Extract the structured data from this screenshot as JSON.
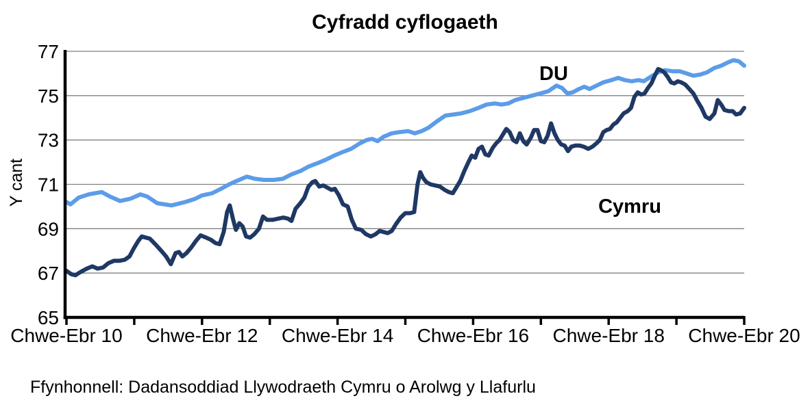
{
  "source": {
    "text": "Ffynhonnell: Dadansoddiad Llywodraeth Cymru o Arolwg y Llafurlu"
  },
  "chart_data": {
    "type": "line",
    "title": "Cyfradd cyflogaeth",
    "ylabel": "Y cant",
    "xlabel": "",
    "ylim": [
      65,
      77
    ],
    "xlim_years_after_2010": [
      0,
      10
    ],
    "grid": "horizontal",
    "grid_color": "#808080",
    "axis_color": "#000000",
    "legend_position": "inline-labels",
    "y_ticks": [
      65,
      67,
      69,
      71,
      73,
      75,
      77
    ],
    "x_minor_tick_years": [
      0,
      1,
      2,
      3,
      4,
      5,
      6,
      7,
      8,
      9,
      10
    ],
    "x_tick_labels": [
      {
        "t": 0,
        "label": "Chwe-Ebr 10"
      },
      {
        "t": 2,
        "label": "Chwe-Ebr 12"
      },
      {
        "t": 4,
        "label": "Chwe-Ebr 14"
      },
      {
        "t": 6,
        "label": "Chwe-Ebr 16"
      },
      {
        "t": 8,
        "label": "Chwe-Ebr 18"
      },
      {
        "t": 10,
        "label": "Chwe-Ebr 20"
      }
    ],
    "series": [
      {
        "name": "DU",
        "color": "#5C9CE8",
        "points": [
          [
            0.0,
            70.2
          ],
          [
            0.06,
            70.1
          ],
          [
            0.18,
            70.4
          ],
          [
            0.33,
            70.55
          ],
          [
            0.52,
            70.65
          ],
          [
            0.64,
            70.45
          ],
          [
            0.79,
            70.25
          ],
          [
            0.94,
            70.35
          ],
          [
            1.09,
            70.55
          ],
          [
            1.19,
            70.45
          ],
          [
            1.34,
            70.15
          ],
          [
            1.55,
            70.05
          ],
          [
            1.75,
            70.2
          ],
          [
            1.9,
            70.35
          ],
          [
            2.0,
            70.5
          ],
          [
            2.15,
            70.6
          ],
          [
            2.28,
            70.8
          ],
          [
            2.4,
            71.0
          ],
          [
            2.51,
            71.15
          ],
          [
            2.66,
            71.35
          ],
          [
            2.78,
            71.25
          ],
          [
            2.91,
            71.2
          ],
          [
            3.06,
            71.2
          ],
          [
            3.19,
            71.25
          ],
          [
            3.32,
            71.45
          ],
          [
            3.45,
            71.6
          ],
          [
            3.57,
            71.8
          ],
          [
            3.7,
            71.95
          ],
          [
            3.82,
            72.1
          ],
          [
            3.95,
            72.3
          ],
          [
            4.07,
            72.45
          ],
          [
            4.2,
            72.6
          ],
          [
            4.33,
            72.85
          ],
          [
            4.43,
            73.0
          ],
          [
            4.51,
            73.05
          ],
          [
            4.59,
            72.95
          ],
          [
            4.68,
            73.15
          ],
          [
            4.8,
            73.3
          ],
          [
            4.9,
            73.35
          ],
          [
            5.04,
            73.4
          ],
          [
            5.14,
            73.3
          ],
          [
            5.24,
            73.4
          ],
          [
            5.34,
            73.55
          ],
          [
            5.47,
            73.85
          ],
          [
            5.59,
            74.1
          ],
          [
            5.71,
            74.15
          ],
          [
            5.82,
            74.2
          ],
          [
            5.95,
            74.3
          ],
          [
            6.08,
            74.45
          ],
          [
            6.2,
            74.6
          ],
          [
            6.32,
            74.65
          ],
          [
            6.42,
            74.6
          ],
          [
            6.52,
            74.65
          ],
          [
            6.62,
            74.8
          ],
          [
            6.74,
            74.9
          ],
          [
            6.87,
            75.0
          ],
          [
            6.99,
            75.1
          ],
          [
            7.11,
            75.2
          ],
          [
            7.23,
            75.45
          ],
          [
            7.31,
            75.35
          ],
          [
            7.39,
            75.1
          ],
          [
            7.47,
            75.15
          ],
          [
            7.56,
            75.3
          ],
          [
            7.64,
            75.4
          ],
          [
            7.72,
            75.3
          ],
          [
            7.82,
            75.45
          ],
          [
            7.92,
            75.6
          ],
          [
            8.04,
            75.7
          ],
          [
            8.14,
            75.8
          ],
          [
            8.24,
            75.7
          ],
          [
            8.34,
            75.65
          ],
          [
            8.44,
            75.7
          ],
          [
            8.52,
            75.65
          ],
          [
            8.62,
            75.85
          ],
          [
            8.73,
            76.05
          ],
          [
            8.83,
            76.15
          ],
          [
            8.95,
            76.1
          ],
          [
            9.05,
            76.1
          ],
          [
            9.15,
            76.0
          ],
          [
            9.25,
            75.9
          ],
          [
            9.35,
            75.95
          ],
          [
            9.45,
            76.05
          ],
          [
            9.56,
            76.25
          ],
          [
            9.66,
            76.35
          ],
          [
            9.76,
            76.5
          ],
          [
            9.84,
            76.6
          ],
          [
            9.92,
            76.55
          ],
          [
            10.0,
            76.35
          ]
        ]
      },
      {
        "name": "Cymru",
        "color": "#1F3864",
        "points": [
          [
            0.0,
            67.1
          ],
          [
            0.07,
            66.95
          ],
          [
            0.13,
            66.9
          ],
          [
            0.21,
            67.05
          ],
          [
            0.3,
            67.2
          ],
          [
            0.38,
            67.3
          ],
          [
            0.46,
            67.2
          ],
          [
            0.54,
            67.25
          ],
          [
            0.62,
            67.45
          ],
          [
            0.7,
            67.55
          ],
          [
            0.78,
            67.55
          ],
          [
            0.86,
            67.6
          ],
          [
            0.93,
            67.75
          ],
          [
            1.0,
            68.15
          ],
          [
            1.06,
            68.45
          ],
          [
            1.11,
            68.65
          ],
          [
            1.17,
            68.6
          ],
          [
            1.23,
            68.55
          ],
          [
            1.31,
            68.3
          ],
          [
            1.4,
            68.0
          ],
          [
            1.47,
            67.75
          ],
          [
            1.54,
            67.4
          ],
          [
            1.61,
            67.9
          ],
          [
            1.66,
            67.95
          ],
          [
            1.71,
            67.75
          ],
          [
            1.77,
            67.9
          ],
          [
            1.84,
            68.15
          ],
          [
            1.91,
            68.45
          ],
          [
            1.98,
            68.7
          ],
          [
            2.06,
            68.6
          ],
          [
            2.13,
            68.5
          ],
          [
            2.2,
            68.35
          ],
          [
            2.26,
            68.3
          ],
          [
            2.32,
            68.85
          ],
          [
            2.37,
            69.75
          ],
          [
            2.41,
            70.05
          ],
          [
            2.46,
            69.4
          ],
          [
            2.5,
            68.95
          ],
          [
            2.55,
            69.25
          ],
          [
            2.6,
            69.1
          ],
          [
            2.65,
            68.65
          ],
          [
            2.71,
            68.6
          ],
          [
            2.77,
            68.75
          ],
          [
            2.84,
            69.0
          ],
          [
            2.9,
            69.55
          ],
          [
            2.96,
            69.4
          ],
          [
            3.04,
            69.4
          ],
          [
            3.12,
            69.45
          ],
          [
            3.2,
            69.5
          ],
          [
            3.27,
            69.45
          ],
          [
            3.32,
            69.35
          ],
          [
            3.38,
            69.9
          ],
          [
            3.45,
            70.15
          ],
          [
            3.51,
            70.4
          ],
          [
            3.57,
            70.9
          ],
          [
            3.63,
            71.1
          ],
          [
            3.67,
            71.15
          ],
          [
            3.73,
            70.9
          ],
          [
            3.79,
            70.95
          ],
          [
            3.85,
            70.85
          ],
          [
            3.91,
            70.75
          ],
          [
            3.96,
            70.8
          ],
          [
            4.02,
            70.5
          ],
          [
            4.08,
            70.1
          ],
          [
            4.15,
            70.0
          ],
          [
            4.21,
            69.4
          ],
          [
            4.27,
            69.0
          ],
          [
            4.35,
            68.95
          ],
          [
            4.42,
            68.75
          ],
          [
            4.49,
            68.65
          ],
          [
            4.56,
            68.75
          ],
          [
            4.62,
            68.9
          ],
          [
            4.68,
            68.85
          ],
          [
            4.74,
            68.8
          ],
          [
            4.8,
            68.9
          ],
          [
            4.86,
            69.2
          ],
          [
            4.93,
            69.5
          ],
          [
            5.0,
            69.7
          ],
          [
            5.07,
            69.7
          ],
          [
            5.13,
            69.75
          ],
          [
            5.18,
            71.0
          ],
          [
            5.22,
            71.55
          ],
          [
            5.26,
            71.3
          ],
          [
            5.31,
            71.1
          ],
          [
            5.37,
            71.0
          ],
          [
            5.44,
            70.95
          ],
          [
            5.51,
            70.9
          ],
          [
            5.58,
            70.75
          ],
          [
            5.64,
            70.65
          ],
          [
            5.7,
            70.6
          ],
          [
            5.76,
            70.9
          ],
          [
            5.81,
            71.15
          ],
          [
            5.87,
            71.6
          ],
          [
            5.93,
            72.0
          ],
          [
            5.98,
            72.3
          ],
          [
            6.03,
            72.2
          ],
          [
            6.08,
            72.6
          ],
          [
            6.13,
            72.7
          ],
          [
            6.18,
            72.35
          ],
          [
            6.23,
            72.3
          ],
          [
            6.29,
            72.65
          ],
          [
            6.34,
            72.85
          ],
          [
            6.39,
            73.0
          ],
          [
            6.44,
            73.25
          ],
          [
            6.49,
            73.5
          ],
          [
            6.54,
            73.35
          ],
          [
            6.59,
            73.0
          ],
          [
            6.64,
            72.9
          ],
          [
            6.69,
            73.3
          ],
          [
            6.74,
            72.95
          ],
          [
            6.79,
            72.8
          ],
          [
            6.85,
            73.1
          ],
          [
            6.9,
            73.45
          ],
          [
            6.95,
            73.45
          ],
          [
            7.0,
            72.95
          ],
          [
            7.05,
            72.9
          ],
          [
            7.1,
            73.2
          ],
          [
            7.15,
            73.75
          ],
          [
            7.2,
            73.3
          ],
          [
            7.25,
            73.0
          ],
          [
            7.3,
            72.8
          ],
          [
            7.35,
            72.75
          ],
          [
            7.4,
            72.5
          ],
          [
            7.45,
            72.7
          ],
          [
            7.51,
            72.75
          ],
          [
            7.57,
            72.75
          ],
          [
            7.63,
            72.7
          ],
          [
            7.7,
            72.6
          ],
          [
            7.76,
            72.7
          ],
          [
            7.82,
            72.85
          ],
          [
            7.87,
            73.0
          ],
          [
            7.92,
            73.35
          ],
          [
            7.97,
            73.45
          ],
          [
            8.02,
            73.5
          ],
          [
            8.07,
            73.7
          ],
          [
            8.12,
            73.8
          ],
          [
            8.17,
            74.0
          ],
          [
            8.22,
            74.2
          ],
          [
            8.28,
            74.3
          ],
          [
            8.33,
            74.45
          ],
          [
            8.38,
            74.95
          ],
          [
            8.43,
            75.15
          ],
          [
            8.48,
            75.05
          ],
          [
            8.53,
            75.1
          ],
          [
            8.58,
            75.35
          ],
          [
            8.63,
            75.55
          ],
          [
            8.68,
            75.9
          ],
          [
            8.73,
            76.2
          ],
          [
            8.77,
            76.15
          ],
          [
            8.82,
            76.05
          ],
          [
            8.87,
            75.85
          ],
          [
            8.92,
            75.6
          ],
          [
            8.97,
            75.55
          ],
          [
            9.02,
            75.65
          ],
          [
            9.07,
            75.6
          ],
          [
            9.13,
            75.5
          ],
          [
            9.19,
            75.3
          ],
          [
            9.25,
            75.1
          ],
          [
            9.31,
            74.75
          ],
          [
            9.37,
            74.45
          ],
          [
            9.43,
            74.05
          ],
          [
            9.49,
            73.95
          ],
          [
            9.56,
            74.2
          ],
          [
            9.61,
            74.8
          ],
          [
            9.66,
            74.6
          ],
          [
            9.71,
            74.35
          ],
          [
            9.77,
            74.3
          ],
          [
            9.83,
            74.3
          ],
          [
            9.88,
            74.15
          ],
          [
            9.94,
            74.2
          ],
          [
            10.0,
            74.45
          ]
        ]
      }
    ]
  }
}
